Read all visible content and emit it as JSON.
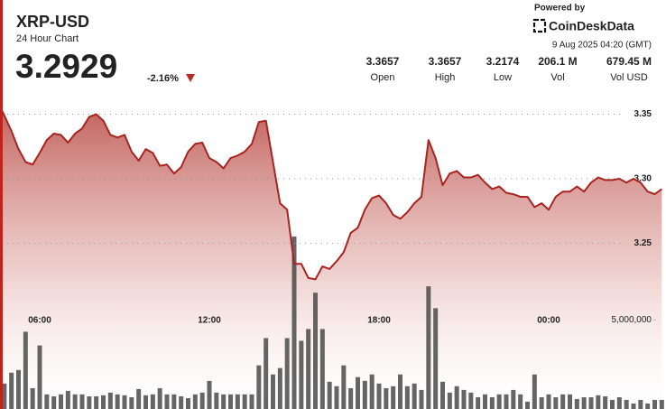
{
  "header": {
    "symbol": "XRP-USD",
    "subtitle": "24 Hour Chart",
    "price": "3.2929",
    "change": "-2.16%",
    "powered_by": "Powered by",
    "brand": "CoinDeskData",
    "timestamp": "9 Aug 2025 04:20 (GMT)"
  },
  "stats": [
    {
      "value": "3.3657",
      "label": "Open"
    },
    {
      "value": "3.3657",
      "label": "High"
    },
    {
      "value": "3.2174",
      "label": "Low"
    },
    {
      "value": "206.1 M",
      "label": "Vol"
    },
    {
      "value": "679.45 M",
      "label": "Vol USD"
    }
  ],
  "chart_data": {
    "type": "line",
    "categories": [
      null,
      null,
      null,
      null,
      null,
      null,
      "06:00",
      null,
      null,
      null,
      null,
      null,
      null,
      null,
      null,
      null,
      null,
      null,
      null,
      null,
      null,
      null,
      null,
      null,
      null,
      null,
      null,
      null,
      null,
      null,
      "12:00",
      null,
      null,
      null,
      null,
      null,
      null,
      null,
      null,
      null,
      null,
      null,
      null,
      null,
      null,
      null,
      null,
      null,
      null,
      null,
      null,
      null,
      null,
      null,
      "18:00",
      null,
      null,
      null,
      null,
      null,
      null,
      null,
      null,
      null,
      null,
      null,
      null,
      null,
      null,
      null,
      null,
      null,
      null,
      null,
      null,
      null,
      null,
      null,
      "00:00",
      null,
      null,
      null,
      null,
      null,
      null,
      null,
      null,
      null,
      null,
      null,
      null,
      null,
      null,
      null,
      null
    ],
    "series": [
      {
        "color": "#a82420",
        "values": [
          3.36,
          3.349,
          3.337,
          3.323,
          3.313,
          3.311,
          3.32,
          3.33,
          3.335,
          3.334,
          3.328,
          3.335,
          3.339,
          3.348,
          3.35,
          3.345,
          3.334,
          3.332,
          3.334,
          3.321,
          3.314,
          3.323,
          3.32,
          3.31,
          3.311,
          3.304,
          3.309,
          3.321,
          3.327,
          3.328,
          3.316,
          3.313,
          3.308,
          3.316,
          3.318,
          3.321,
          3.327,
          3.344,
          3.345,
          3.313,
          3.281,
          3.276,
          3.234,
          3.234,
          3.223,
          3.222,
          3.232,
          3.23,
          3.236,
          3.243,
          3.258,
          3.262,
          3.276,
          3.285,
          3.287,
          3.281,
          3.272,
          3.269,
          3.274,
          3.281,
          3.286,
          3.33,
          3.316,
          3.295,
          3.304,
          3.306,
          3.301,
          3.301,
          3.303,
          3.297,
          3.292,
          3.294,
          3.289,
          3.288,
          3.286,
          3.286,
          3.278,
          3.281,
          3.276,
          3.286,
          3.29,
          3.29,
          3.294,
          3.29,
          3.297,
          3.301,
          3.299,
          3.299,
          3.3,
          3.297,
          3.3,
          3.297,
          3.29,
          3.288,
          3.292
        ]
      },
      {
        "type": "bar",
        "axis": "y2",
        "color": "#4a4a4a",
        "values": [
          1020000,
          1430000,
          2040000,
          2190000,
          4340000,
          1170000,
          3570000,
          820000,
          710000,
          820000,
          1020000,
          820000,
          820000,
          710000,
          710000,
          770000,
          920000,
          820000,
          770000,
          660000,
          1120000,
          770000,
          820000,
          1170000,
          820000,
          820000,
          710000,
          610000,
          820000,
          920000,
          1580000,
          920000,
          820000,
          820000,
          820000,
          820000,
          820000,
          2450000,
          3980000,
          1940000,
          2300000,
          3980000,
          9690000,
          3830000,
          4490000,
          6530000,
          4490000,
          1530000,
          1280000,
          2450000,
          1170000,
          1790000,
          1580000,
          1940000,
          1430000,
          1170000,
          1280000,
          1940000,
          1280000,
          1430000,
          1070000,
          6890000,
          5660000,
          1530000,
          920000,
          1280000,
          1070000,
          920000,
          660000,
          820000,
          660000,
          820000,
          820000,
          1070000,
          820000,
          410000,
          1940000,
          660000,
          820000,
          660000,
          820000,
          820000,
          560000,
          660000,
          660000,
          770000,
          710000,
          510000,
          660000,
          510000,
          310000,
          510000,
          310000,
          510000,
          510000
        ]
      }
    ],
    "ylim": [
      3.12,
      3.37
    ],
    "yticks": [
      3.25,
      {
        "value": 3.3,
        "label": "3.30"
      },
      3.35
    ],
    "y2lim": [
      0,
      18000000
    ],
    "y2ticks": [
      {
        "value": 5000000,
        "label": "5,000,000"
      }
    ],
    "grid": true
  }
}
